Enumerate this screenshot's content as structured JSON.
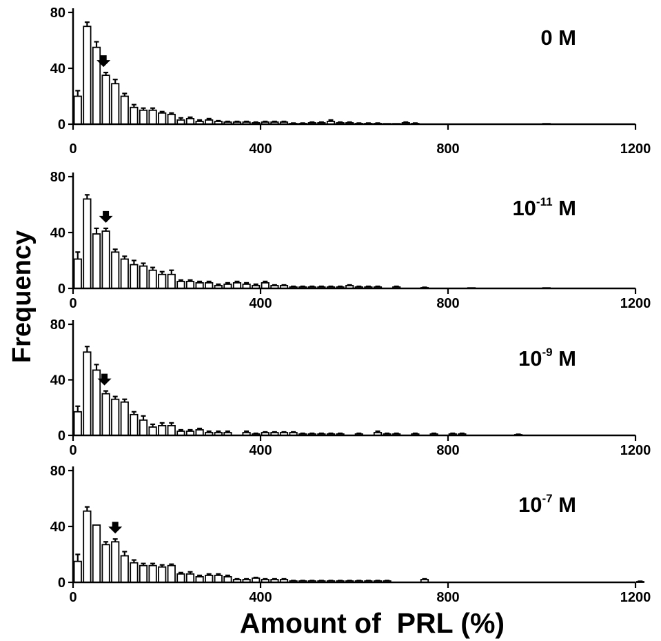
{
  "figure": {
    "ylabel": "Frequency",
    "xlabel": "Amount of  PRL (%)"
  },
  "chart_data": [
    {
      "type": "bar",
      "panel_label": "0 M",
      "label_base": "0 M",
      "label_exp": "",
      "xlim": [
        0,
        1200
      ],
      "ylim": [
        0,
        80
      ],
      "x_ticks": [
        0,
        400,
        800,
        1200
      ],
      "y_ticks": [
        0,
        40,
        80
      ],
      "bin_width": 20,
      "x": [
        10,
        30,
        50,
        70,
        90,
        110,
        130,
        150,
        170,
        190,
        210,
        230,
        250,
        270,
        290,
        310,
        330,
        350,
        370,
        390,
        410,
        430,
        450,
        470,
        490,
        510,
        530,
        550,
        570,
        590,
        610,
        630,
        650,
        670,
        690,
        710,
        730,
        1010
      ],
      "values": [
        20,
        70,
        55,
        35,
        29,
        20,
        12,
        10,
        10,
        8,
        7,
        3,
        4,
        2,
        3,
        2,
        1.5,
        1.5,
        1.5,
        1,
        1.5,
        1.5,
        1.5,
        0.5,
        0.5,
        1,
        1,
        2,
        1,
        1,
        0.5,
        0.5,
        0.5,
        0.3,
        0.3,
        1,
        0.5,
        0.3
      ],
      "errors": [
        4,
        3,
        4,
        2,
        3,
        2,
        2,
        1.5,
        1.5,
        1,
        1,
        1.5,
        1,
        1,
        1,
        0.5,
        0.5,
        0.5,
        0.5,
        0.5,
        0.5,
        0.5,
        0.5,
        0.3,
        0.3,
        0.5,
        0.5,
        1,
        0.5,
        0.5,
        0.3,
        0.3,
        0.3,
        0.2,
        0.2,
        0.5,
        0.3,
        0.2
      ],
      "arrow_x": 65
    },
    {
      "type": "bar",
      "panel_label": "10-11 M",
      "label_base": "10",
      "label_exp": "-11",
      "xlim": [
        0,
        1200
      ],
      "ylim": [
        0,
        80
      ],
      "x_ticks": [
        0,
        400,
        800,
        1200
      ],
      "y_ticks": [
        0,
        40,
        80
      ],
      "bin_width": 20,
      "x": [
        10,
        30,
        50,
        70,
        90,
        110,
        130,
        150,
        170,
        190,
        210,
        230,
        250,
        270,
        290,
        310,
        330,
        350,
        370,
        390,
        410,
        430,
        450,
        470,
        490,
        510,
        530,
        550,
        570,
        590,
        610,
        630,
        650,
        690,
        750,
        850,
        1010
      ],
      "values": [
        21,
        64,
        39,
        41,
        26,
        21,
        17,
        16,
        13,
        10,
        10,
        5,
        5,
        4,
        4,
        2,
        3,
        4,
        3,
        2,
        4,
        2,
        2,
        1,
        1,
        1,
        1,
        1,
        1,
        2,
        1,
        1,
        1,
        1,
        0.5,
        0.3,
        0.3
      ],
      "errors": [
        5,
        3,
        4,
        2,
        2,
        2,
        3,
        2,
        2,
        2,
        3,
        1,
        1,
        1,
        1,
        1,
        1,
        1,
        1,
        1,
        1,
        0.5,
        0.5,
        0.5,
        0.5,
        0.5,
        0.5,
        0.5,
        0.5,
        0.5,
        0.5,
        0.5,
        0.5,
        0.5,
        0.3,
        0.2,
        0.2
      ],
      "arrow_x": 70
    },
    {
      "type": "bar",
      "panel_label": "10-9 M",
      "label_base": "10",
      "label_exp": "-9",
      "xlim": [
        0,
        1200
      ],
      "ylim": [
        0,
        80
      ],
      "x_ticks": [
        0,
        400,
        800,
        1200
      ],
      "y_ticks": [
        0,
        40,
        80
      ],
      "bin_width": 20,
      "x": [
        10,
        30,
        50,
        70,
        90,
        110,
        130,
        150,
        170,
        190,
        210,
        230,
        250,
        270,
        290,
        310,
        330,
        370,
        390,
        410,
        430,
        450,
        470,
        490,
        510,
        530,
        550,
        570,
        610,
        650,
        670,
        690,
        730,
        770,
        810,
        830,
        950
      ],
      "values": [
        17,
        60,
        47,
        30,
        26,
        24,
        15,
        11,
        6,
        7,
        7,
        3,
        3,
        4,
        2,
        2,
        2,
        2,
        1,
        2,
        2,
        2,
        2,
        1,
        1,
        1,
        1,
        1,
        1,
        2,
        1,
        1,
        1,
        1,
        1,
        1,
        0.5
      ],
      "errors": [
        4,
        4,
        4,
        2,
        2,
        2,
        2,
        3,
        2,
        2,
        2,
        1,
        1,
        1,
        1,
        1,
        1,
        1,
        0.5,
        0.5,
        0.5,
        0.5,
        0.5,
        0.5,
        0.5,
        0.5,
        0.5,
        0.5,
        0.5,
        1,
        0.5,
        0.5,
        0.5,
        0.5,
        0.5,
        0.5,
        0.3
      ],
      "arrow_x": 67
    },
    {
      "type": "bar",
      "panel_label": "10-7 M",
      "label_base": "10",
      "label_exp": "-7",
      "xlim": [
        0,
        1200
      ],
      "ylim": [
        0,
        80
      ],
      "x_ticks": [
        0,
        400,
        800,
        1200
      ],
      "y_ticks": [
        0,
        40,
        80
      ],
      "bin_width": 20,
      "x": [
        10,
        30,
        50,
        70,
        90,
        110,
        130,
        150,
        170,
        190,
        210,
        230,
        250,
        270,
        290,
        310,
        330,
        350,
        370,
        390,
        410,
        430,
        450,
        470,
        490,
        510,
        530,
        550,
        570,
        590,
        610,
        630,
        650,
        670,
        750,
        1210
      ],
      "values": [
        15,
        51,
        41,
        27,
        29,
        19,
        14,
        12,
        12,
        11,
        12,
        6,
        6,
        4,
        5,
        5,
        4,
        2,
        2,
        3,
        2,
        2,
        2,
        1,
        1,
        1,
        1,
        1,
        1,
        1,
        1,
        1,
        1,
        1,
        2,
        0.5
      ],
      "errors": [
        5,
        3,
        0,
        2,
        2,
        3,
        2,
        1.5,
        1.5,
        1.5,
        1,
        1,
        1.5,
        1,
        1,
        1,
        1,
        0.5,
        0.5,
        0.5,
        0.5,
        0.5,
        0.5,
        0.3,
        0.3,
        0.3,
        0.3,
        0.3,
        0.3,
        0.3,
        0.3,
        0.3,
        0.3,
        0.3,
        0.5,
        0.3
      ],
      "arrow_x": 90
    }
  ]
}
